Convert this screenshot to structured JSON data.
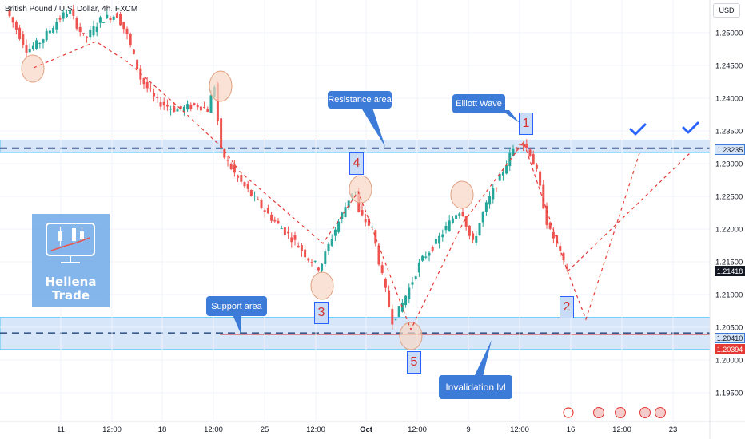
{
  "header": {
    "title": "British Pound / U.S. Dollar, 4h, FXCM",
    "currency": "USD"
  },
  "colors": {
    "up": "#26a69a",
    "down": "#ef5350",
    "zone": "#bcd5f5",
    "accent": "#3d7bd9",
    "wave": "#d32f2f"
  },
  "chart_data": {
    "type": "candlestick",
    "x_ticks": [
      "11",
      "12:00",
      "18",
      "12:00",
      "25",
      "12:00",
      "Oct",
      "12:00",
      "9",
      "12:00",
      "16",
      "12:00",
      "23"
    ],
    "y_ticks": [
      "1.25000",
      "1.24500",
      "1.24000",
      "1.23500",
      "1.23000",
      "1.22500",
      "1.22000",
      "1.21500",
      "1.21000",
      "1.20500",
      "1.20000",
      "1.19500"
    ],
    "ylim": [
      1.1925,
      1.2555
    ],
    "price_labels": [
      {
        "value": "1.23235",
        "style": "zone"
      },
      {
        "value": "1.21418",
        "style": "last"
      },
      {
        "value": "1.20410",
        "style": "zone"
      },
      {
        "value": "1.20394",
        "style": "red"
      }
    ],
    "zones": [
      {
        "name": "Resistance area",
        "low": 1.2317,
        "high": 1.2336,
        "line": 1.23235
      },
      {
        "name": "Support area",
        "low": 1.2016,
        "high": 1.2065,
        "line": 1.2041
      }
    ],
    "invalidation": 1.20394,
    "annotations": [
      "Resistance area",
      "Elliott Wave",
      "Support area",
      "Invalidation lvl"
    ],
    "wave_labels": [
      "1",
      "2",
      "3",
      "4",
      "5"
    ]
  },
  "logo": {
    "line1": "Hellena",
    "line2": "Trade"
  }
}
